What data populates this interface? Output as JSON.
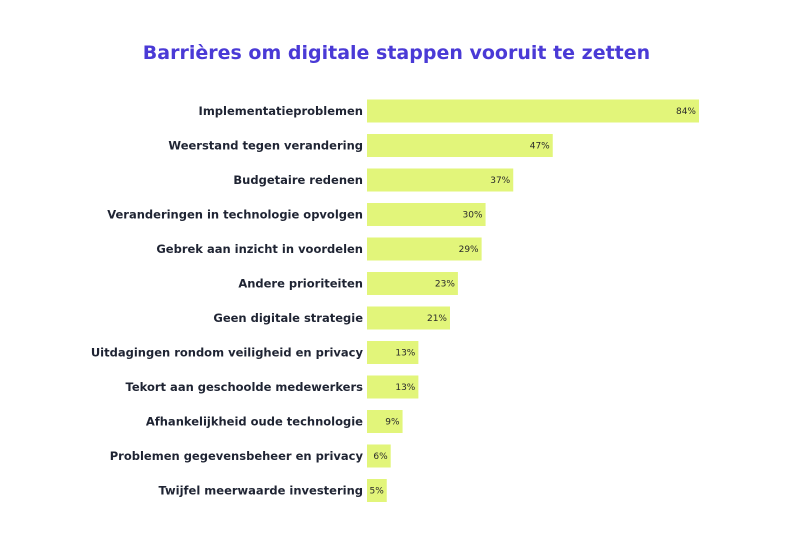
{
  "chart_data": {
    "type": "bar",
    "orientation": "horizontal",
    "title": "Barrières om digitale stappen vooruit te zetten",
    "categories": [
      "Implementatieproblemen",
      "Weerstand tegen verandering",
      "Budgetaire redenen",
      "Veranderingen in technologie opvolgen",
      "Gebrek aan inzicht in voordelen",
      "Andere prioriteiten",
      "Geen digitale strategie",
      "Uitdagingen rondom veiligheid en privacy",
      "Tekort aan geschoolde medewerkers",
      "Afhankelijkheid oude technologie",
      "Problemen gegevensbeheer en privacy",
      "Twijfel meerwaarde investering"
    ],
    "values": [
      84,
      47,
      37,
      30,
      29,
      23,
      21,
      13,
      13,
      9,
      6,
      5
    ],
    "value_labels": [
      "84%",
      "47%",
      "37%",
      "30%",
      "29%",
      "23%",
      "21%",
      "13%",
      "13%",
      "9%",
      "6%",
      "5%"
    ],
    "xlim": [
      0,
      84
    ],
    "bar_color": "#e2f57a",
    "title_color": "#4a3ad6"
  }
}
